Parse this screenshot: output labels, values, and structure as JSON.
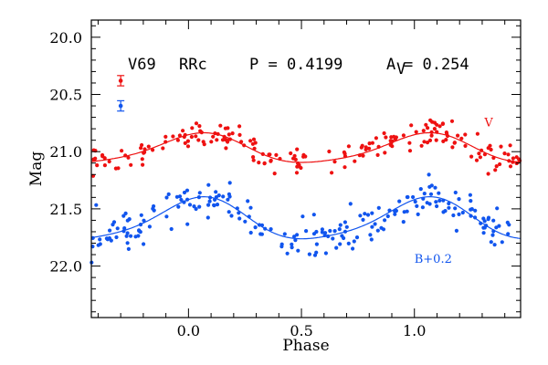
{
  "chart_data": {
    "type": "scatter",
    "title": "",
    "header": {
      "star": "V69",
      "class": "RRc",
      "period_text": "P = 0.4199",
      "amp_label": "A",
      "amp_sub": "V",
      "amp_value": " = 0.254"
    },
    "xlabel": "Phase",
    "ylabel": "Mag",
    "xlim": [
      -0.43,
      1.47
    ],
    "ylim": [
      22.45,
      19.85
    ],
    "x_ticks": [
      {
        "value": 0.0,
        "label": "0.0"
      },
      {
        "value": 0.5,
        "label": "0.5"
      },
      {
        "value": 1.0,
        "label": "1.0"
      }
    ],
    "y_ticks": [
      {
        "value": 20.0,
        "label": "20.0"
      },
      {
        "value": 20.5,
        "label": "20.5"
      },
      {
        "value": 21.0,
        "label": "21.0"
      },
      {
        "value": 21.5,
        "label": "21.5"
      },
      {
        "value": 22.0,
        "label": "22.0"
      }
    ],
    "x_minor_step": 0.1,
    "y_minor_step": 0.1,
    "grid": false,
    "series": [
      {
        "name": "V",
        "color": "#ee1111",
        "mean": 20.98,
        "amplitude": 0.254,
        "scatter_sigma": 0.06,
        "n_points": 200,
        "error_bar": {
          "x": -0.3,
          "y": 20.38,
          "half": 0.045
        },
        "label_pos": {
          "x": 1.31,
          "y": 20.78
        }
      },
      {
        "name": "B+0.2",
        "color": "#1155ee",
        "mean": 21.6,
        "amplitude": 0.36,
        "scatter_sigma": 0.08,
        "n_points": 220,
        "error_bar": {
          "x": -0.3,
          "y": 20.6,
          "half": 0.045
        },
        "label_pos": {
          "x": 1.0,
          "y": 21.97
        }
      }
    ],
    "legend_position": "none"
  }
}
